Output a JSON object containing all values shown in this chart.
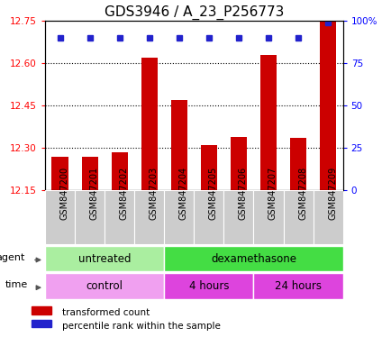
{
  "title": "GDS3946 / A_23_P256773",
  "samples": [
    "GSM847200",
    "GSM847201",
    "GSM847202",
    "GSM847203",
    "GSM847204",
    "GSM847205",
    "GSM847206",
    "GSM847207",
    "GSM847208",
    "GSM847209"
  ],
  "bar_values": [
    12.27,
    12.27,
    12.285,
    12.62,
    12.47,
    12.31,
    12.34,
    12.63,
    12.335,
    12.75
  ],
  "percentile_values": [
    90,
    90,
    90,
    90,
    90,
    90,
    90,
    90,
    90,
    99
  ],
  "ymin": 12.15,
  "ymax": 12.75,
  "yticks": [
    12.15,
    12.3,
    12.45,
    12.6,
    12.75
  ],
  "right_yticks": [
    0,
    25,
    50,
    75,
    100
  ],
  "bar_color": "#cc0000",
  "dot_color": "#2222cc",
  "agent_groups": [
    {
      "label": "untreated",
      "start": 0,
      "end": 4,
      "color": "#aaeea0"
    },
    {
      "label": "dexamethasone",
      "start": 4,
      "end": 10,
      "color": "#44dd44"
    }
  ],
  "time_groups": [
    {
      "label": "control",
      "start": 0,
      "end": 4,
      "color": "#f0a0f0"
    },
    {
      "label": "4 hours",
      "start": 4,
      "end": 7,
      "color": "#dd44dd"
    },
    {
      "label": "24 hours",
      "start": 7,
      "end": 10,
      "color": "#dd44dd"
    }
  ],
  "title_fontsize": 11,
  "tick_fontsize": 7.5,
  "sample_fontsize": 7,
  "group_fontsize": 8.5
}
